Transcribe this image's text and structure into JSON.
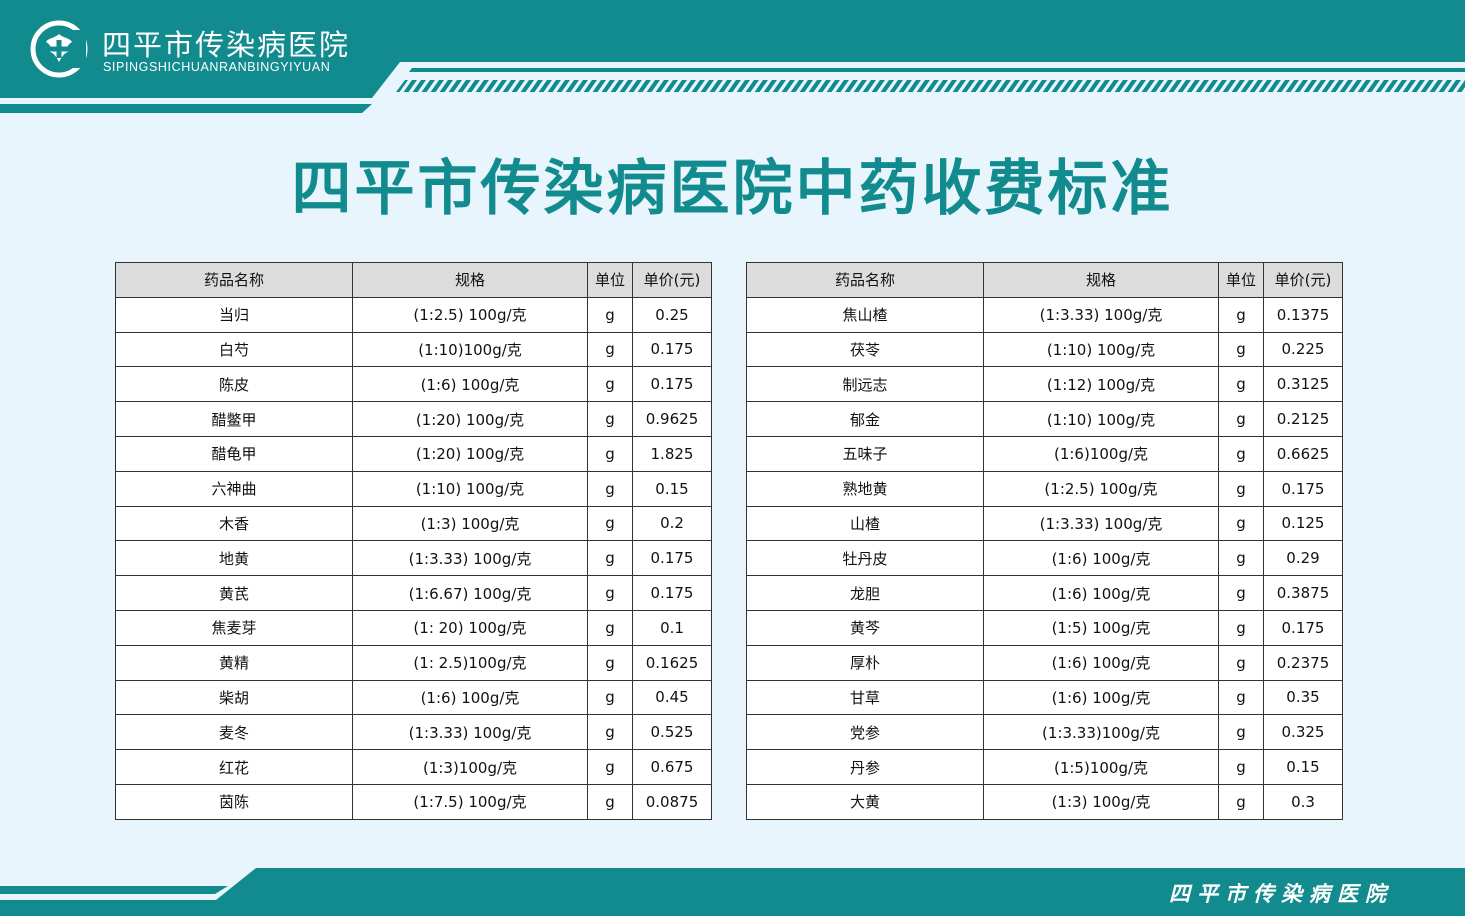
{
  "header": {
    "org_name_cn": "四平市传染病医院",
    "org_name_en": "SIPINGSHICHUANRANBINGYIYUAN",
    "logo_icon": "hospital-logo-icon"
  },
  "title": "四平市传染病医院中药收费标准",
  "table_headers": {
    "name": "药品名称",
    "spec": "规格",
    "unit": "单位",
    "price": "单价(元)"
  },
  "left_table": [
    {
      "name": "当归",
      "spec": "(1:2.5) 100g/克",
      "unit": "g",
      "price": "0.25"
    },
    {
      "name": "白芍",
      "spec": "(1:10)100g/克",
      "unit": "g",
      "price": "0.175"
    },
    {
      "name": "陈皮",
      "spec": "(1:6) 100g/克",
      "unit": "g",
      "price": "0.175"
    },
    {
      "name": "醋鳖甲",
      "spec": "(1:20) 100g/克",
      "unit": "g",
      "price": "0.9625"
    },
    {
      "name": "醋龟甲",
      "spec": "(1:20) 100g/克",
      "unit": "g",
      "price": "1.825"
    },
    {
      "name": "六神曲",
      "spec": "(1:10) 100g/克",
      "unit": "g",
      "price": "0.15"
    },
    {
      "name": "木香",
      "spec": "(1:3) 100g/克",
      "unit": "g",
      "price": "0.2"
    },
    {
      "name": "地黄",
      "spec": "(1:3.33) 100g/克",
      "unit": "g",
      "price": "0.175"
    },
    {
      "name": "黄芪",
      "spec": "(1:6.67) 100g/克",
      "unit": "g",
      "price": "0.175"
    },
    {
      "name": "焦麦芽",
      "spec": "(1: 20) 100g/克",
      "unit": "g",
      "price": "0.1"
    },
    {
      "name": "黄精",
      "spec": "(1: 2.5)100g/克",
      "unit": "g",
      "price": "0.1625"
    },
    {
      "name": "柴胡",
      "spec": "(1:6) 100g/克",
      "unit": "g",
      "price": "0.45"
    },
    {
      "name": "麦冬",
      "spec": "(1:3.33) 100g/克",
      "unit": "g",
      "price": "0.525"
    },
    {
      "name": "红花",
      "spec": "(1:3)100g/克",
      "unit": "g",
      "price": "0.675"
    },
    {
      "name": "茵陈",
      "spec": "(1:7.5) 100g/克",
      "unit": "g",
      "price": "0.0875"
    }
  ],
  "right_table": [
    {
      "name": "焦山楂",
      "spec": "(1:3.33) 100g/克",
      "unit": "g",
      "price": "0.1375"
    },
    {
      "name": "茯苓",
      "spec": "(1:10) 100g/克",
      "unit": "g",
      "price": "0.225"
    },
    {
      "name": "制远志",
      "spec": "(1:12) 100g/克",
      "unit": "g",
      "price": "0.3125"
    },
    {
      "name": "郁金",
      "spec": "(1:10) 100g/克",
      "unit": "g",
      "price": "0.2125"
    },
    {
      "name": "五味子",
      "spec": "(1:6)100g/克",
      "unit": "g",
      "price": "0.6625"
    },
    {
      "name": "熟地黄",
      "spec": "(1:2.5) 100g/克",
      "unit": "g",
      "price": "0.175"
    },
    {
      "name": "山楂",
      "spec": "(1:3.33) 100g/克",
      "unit": "g",
      "price": "0.125"
    },
    {
      "name": "牡丹皮",
      "spec": "(1:6) 100g/克",
      "unit": "g",
      "price": "0.29"
    },
    {
      "name": "龙胆",
      "spec": "(1:6) 100g/克",
      "unit": "g",
      "price": "0.3875"
    },
    {
      "name": "黄芩",
      "spec": "(1:5) 100g/克",
      "unit": "g",
      "price": "0.175"
    },
    {
      "name": "厚朴",
      "spec": "(1:6) 100g/克",
      "unit": "g",
      "price": "0.2375"
    },
    {
      "name": "甘草",
      "spec": "(1:6) 100g/克",
      "unit": "g",
      "price": "0.35"
    },
    {
      "name": "党参",
      "spec": "(1:3.33)100g/克",
      "unit": "g",
      "price": "0.325"
    },
    {
      "name": "丹参",
      "spec": "(1:5)100g/克",
      "unit": "g",
      "price": "0.15"
    },
    {
      "name": "大黄",
      "spec": "(1:3) 100g/克",
      "unit": "g",
      "price": "0.3"
    }
  ],
  "footer": {
    "org_name": "四平市传染病医院"
  },
  "colors": {
    "teal": "#128b8f",
    "background": "#e8f5fc",
    "header_cell": "#dcdcdc"
  }
}
